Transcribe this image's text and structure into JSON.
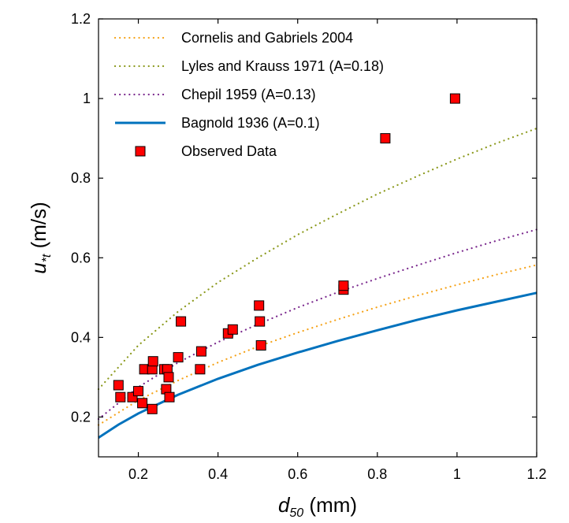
{
  "chart_data": {
    "type": "scatter",
    "xlabel": {
      "var": "d",
      "sub": "50",
      "unit": " (mm)"
    },
    "ylabel": {
      "var": "u",
      "sub": "*t",
      "unit": " (m/s)"
    },
    "xlim": [
      0.1,
      1.2
    ],
    "ylim": [
      0.1,
      1.2
    ],
    "x_ticks": [
      "0.2",
      "0.4",
      "0.6",
      "0.8",
      "1",
      "1.2"
    ],
    "y_ticks": [
      "0.2",
      "0.4",
      "0.6",
      "0.8",
      "1",
      "1.2"
    ],
    "grid": false,
    "legend_position": "top-left",
    "series": [
      {
        "name": "Cornelis and Gabriels 2004",
        "kind": "line",
        "style": "dotted",
        "color": "#f5a31a",
        "x": [
          0.1,
          0.2,
          0.3,
          0.4,
          0.5,
          0.6,
          0.7,
          0.8,
          0.9,
          1.0,
          1.1,
          1.2
        ],
        "y": [
          0.18,
          0.242,
          0.292,
          0.337,
          0.377,
          0.412,
          0.445,
          0.476,
          0.505,
          0.532,
          0.558,
          0.582
        ]
      },
      {
        "name": "Lyles and Krauss 1971 (A=0.18)",
        "kind": "line",
        "style": "dotted",
        "color": "#8c9a1e",
        "x": [
          0.1,
          0.2,
          0.3,
          0.4,
          0.5,
          0.6,
          0.7,
          0.8,
          0.9,
          1.0,
          1.1,
          1.2
        ],
        "y": [
          0.27,
          0.38,
          0.465,
          0.538,
          0.6,
          0.658,
          0.71,
          0.76,
          0.805,
          0.848,
          0.888,
          0.925
        ]
      },
      {
        "name": "Chepil 1959 (A=0.13)",
        "kind": "line",
        "style": "dotted",
        "color": "#7b2a8e",
        "x": [
          0.1,
          0.2,
          0.3,
          0.4,
          0.5,
          0.6,
          0.7,
          0.8,
          0.9,
          1.0,
          1.1,
          1.2
        ],
        "y": [
          0.195,
          0.275,
          0.337,
          0.388,
          0.433,
          0.475,
          0.513,
          0.548,
          0.581,
          0.613,
          0.643,
          0.671
        ]
      },
      {
        "name": "Bagnold 1936 (A=0.1)",
        "kind": "line",
        "style": "solid",
        "color": "#0072bd",
        "x": [
          0.1,
          0.15,
          0.2,
          0.3,
          0.4,
          0.5,
          0.6,
          0.7,
          0.8,
          0.9,
          1.0,
          1.1,
          1.2
        ],
        "y": [
          0.148,
          0.181,
          0.209,
          0.256,
          0.296,
          0.331,
          0.362,
          0.391,
          0.418,
          0.444,
          0.468,
          0.49,
          0.512
        ]
      },
      {
        "name": "Observed Data",
        "kind": "scatter",
        "marker": "square",
        "color": "#ff0000",
        "points": [
          [
            0.15,
            0.28
          ],
          [
            0.155,
            0.25
          ],
          [
            0.185,
            0.25
          ],
          [
            0.2,
            0.265
          ],
          [
            0.21,
            0.235
          ],
          [
            0.215,
            0.32
          ],
          [
            0.235,
            0.22
          ],
          [
            0.235,
            0.32
          ],
          [
            0.237,
            0.34
          ],
          [
            0.265,
            0.32
          ],
          [
            0.27,
            0.27
          ],
          [
            0.273,
            0.32
          ],
          [
            0.276,
            0.3
          ],
          [
            0.278,
            0.25
          ],
          [
            0.3,
            0.35
          ],
          [
            0.307,
            0.44
          ],
          [
            0.355,
            0.32
          ],
          [
            0.358,
            0.365
          ],
          [
            0.425,
            0.41
          ],
          [
            0.437,
            0.42
          ],
          [
            0.503,
            0.48
          ],
          [
            0.505,
            0.44
          ],
          [
            0.508,
            0.38
          ],
          [
            0.715,
            0.52
          ],
          [
            0.715,
            0.53
          ],
          [
            0.82,
            0.9
          ],
          [
            0.995,
            1.0
          ]
        ]
      }
    ]
  }
}
